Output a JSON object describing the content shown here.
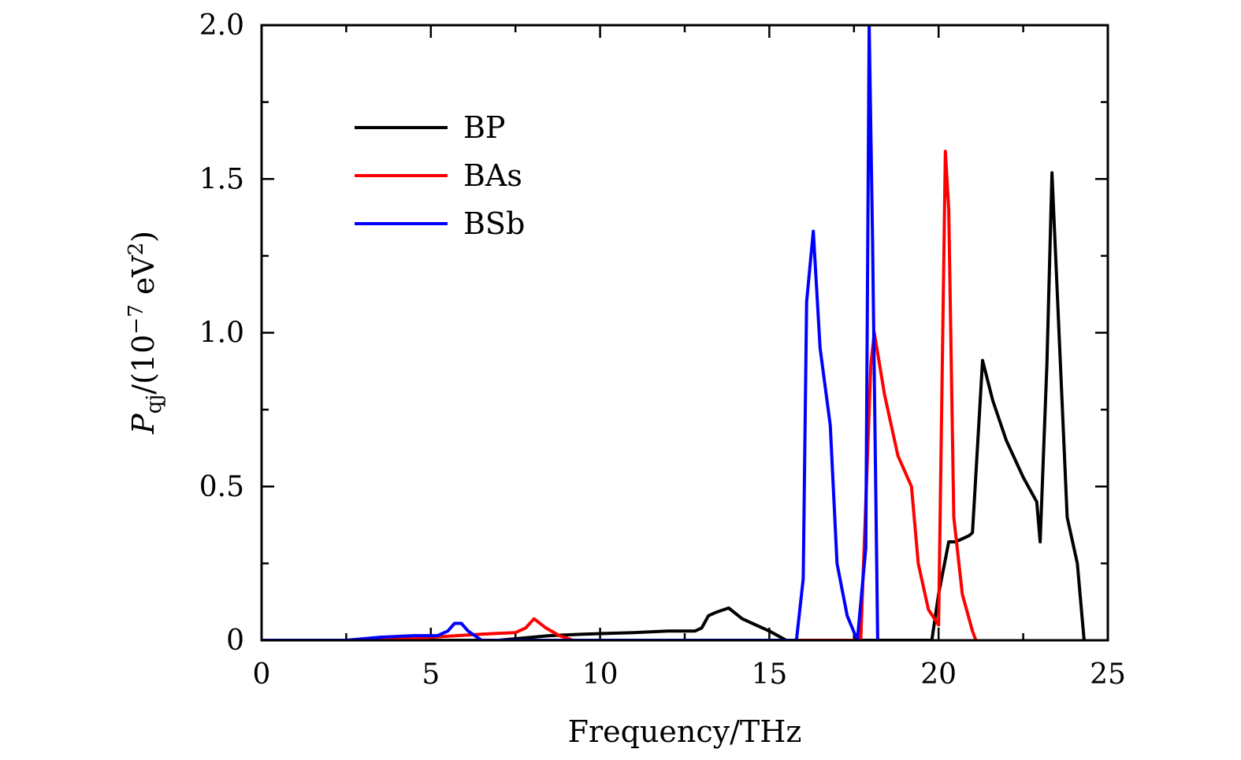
{
  "chart_data": {
    "type": "line",
    "xlabel": "Frequency/THz",
    "ylabel": {
      "symbol": "P",
      "subscript": "qj",
      "slash_open": "/(10",
      "exponent": "−7",
      "unit": " eV",
      "unit_exponent": "2",
      "close": ")"
    },
    "xlim": [
      0,
      25
    ],
    "ylim": [
      0,
      2.0
    ],
    "xticks": [
      0,
      5,
      10,
      15,
      20,
      25
    ],
    "xtick_labels": [
      "0",
      "5",
      "10",
      "15",
      "20",
      "25"
    ],
    "yticks": [
      0,
      0.5,
      1.0,
      1.5,
      2.0
    ],
    "ytick_labels": [
      "0",
      "0.5",
      "1.0",
      "1.5",
      "2.0"
    ],
    "grid": false,
    "legend_position": "top-left",
    "series": [
      {
        "name": "BP",
        "color": "#000000",
        "x": [
          0,
          5.0,
          7.0,
          8.5,
          9.5,
          11.0,
          12.0,
          12.8,
          13.0,
          13.2,
          13.4,
          13.8,
          14.2,
          14.6,
          15.0,
          15.5,
          19.8,
          20.0,
          20.3,
          20.5,
          20.9,
          21.0,
          21.3,
          21.6,
          22.0,
          22.5,
          22.9,
          23.0,
          23.2,
          23.35,
          23.8,
          24.1,
          24.3
        ],
        "y": [
          0,
          0.0,
          0.0,
          0.015,
          0.02,
          0.025,
          0.03,
          0.03,
          0.04,
          0.08,
          0.09,
          0.105,
          0.07,
          0.05,
          0.03,
          0.0,
          0.0,
          0.15,
          0.32,
          0.32,
          0.34,
          0.35,
          0.91,
          0.78,
          0.65,
          0.53,
          0.45,
          0.32,
          0.9,
          1.52,
          0.4,
          0.25,
          0.0
        ]
      },
      {
        "name": "BAs",
        "color": "#ff0000",
        "x": [
          0,
          3.5,
          5.0,
          6.5,
          7.5,
          7.8,
          8.05,
          8.4,
          8.8,
          9.2,
          9.6,
          17.0,
          17.7,
          18.0,
          18.1,
          18.4,
          18.8,
          19.2,
          19.4,
          19.7,
          20.0,
          20.2,
          20.3,
          20.45,
          20.7,
          21.0,
          21.1
        ],
        "y": [
          0,
          0.0,
          0.01,
          0.02,
          0.025,
          0.04,
          0.07,
          0.04,
          0.015,
          0.0,
          0.0,
          0.0,
          0.0,
          0.9,
          1.0,
          0.8,
          0.6,
          0.5,
          0.25,
          0.1,
          0.05,
          1.59,
          1.4,
          0.4,
          0.15,
          0.03,
          0.0
        ]
      },
      {
        "name": "BSb",
        "color": "#0000ff",
        "x": [
          0,
          2.5,
          3.5,
          4.5,
          5.2,
          5.5,
          5.7,
          5.9,
          6.1,
          6.5,
          15.8,
          16.0,
          16.1,
          16.3,
          16.5,
          16.8,
          17.0,
          17.3,
          17.6,
          17.85,
          17.95,
          18.05,
          18.2
        ],
        "y": [
          0,
          0.0,
          0.01,
          0.015,
          0.015,
          0.03,
          0.055,
          0.055,
          0.03,
          0.0,
          0.0,
          0.2,
          1.1,
          1.33,
          0.95,
          0.7,
          0.25,
          0.08,
          0.0,
          0.3,
          2.0,
          1.3,
          0.0
        ]
      }
    ]
  }
}
